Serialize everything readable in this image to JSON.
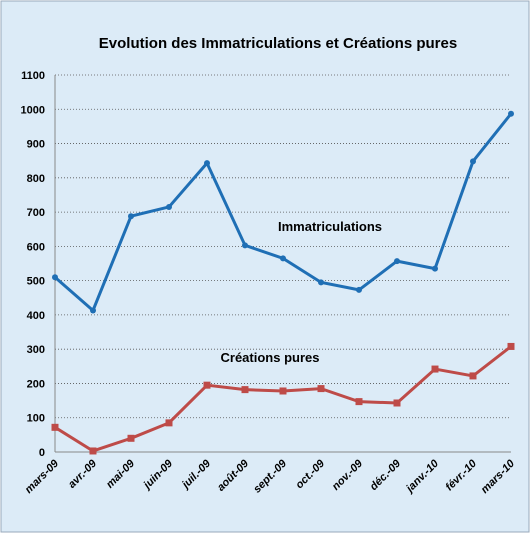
{
  "chart_data": {
    "type": "line",
    "title": "Evolution des Immatriculations et Créations pures",
    "categories": [
      "mars-09",
      "avr.-09",
      "mai-09",
      "juin-09",
      "juil.-09",
      "août-09",
      "sept.-09",
      "oct.-09",
      "nov.-09",
      "déc.-09",
      "janv.-10",
      "févr.-10",
      "mars-10"
    ],
    "series": [
      {
        "name": "Immatriculations",
        "color": "#1f6fb5",
        "values": [
          510,
          413,
          688,
          715,
          843,
          603,
          565,
          495,
          473,
          557,
          535,
          848,
          987
        ]
      },
      {
        "name": "Créations pures",
        "color": "#be4b48",
        "values": [
          72,
          3,
          40,
          85,
          195,
          182,
          178,
          185,
          147,
          143,
          242,
          222,
          308
        ]
      }
    ],
    "ylim": [
      0,
      1100
    ],
    "yticks": [
      0,
      100,
      200,
      300,
      400,
      500,
      600,
      700,
      800,
      900,
      1000,
      1100
    ],
    "grid": true
  }
}
